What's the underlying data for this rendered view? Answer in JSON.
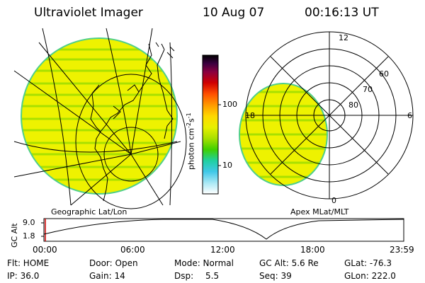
{
  "header": {
    "title": "Ultraviolet Imager",
    "date": "10 Aug 07",
    "time": "00:16:13 UT"
  },
  "colorbar": {
    "ticks": [
      "100",
      "10"
    ],
    "unit_base": "photon cm",
    "unit_exp1": "-2",
    "unit_mid": "s",
    "unit_exp2": "-1"
  },
  "geo_panel": {
    "label": "Geographic Lat/Lon"
  },
  "polar_panel": {
    "label": "Apex MLat/MLT",
    "mlt_labels": {
      "top": "12",
      "left": "18",
      "right": "6",
      "bottom": "0"
    },
    "lat_labels": [
      "60",
      "70",
      "80"
    ]
  },
  "altitude_strip": {
    "axis_label": "GC Alt",
    "ticks": [
      "9.0",
      "1.8"
    ],
    "time_ticks": [
      "00:00",
      "06:00",
      "12:00",
      "18:00",
      "23:59"
    ]
  },
  "status": {
    "flt": "Flt: HOME",
    "ip": "IP: 36.0",
    "door": "Door: Open",
    "gain": "Gain: 14",
    "mode": "Mode: Normal",
    "dsp": "Dsp:",
    "dsp_val": "5.5",
    "gcalt": "GC Alt: 5.6 Re",
    "seq": "Seq: 39",
    "glat": "GLat: -76.3",
    "glon": "GLon: 222.0"
  },
  "colors": {
    "fill": "#eef200",
    "stripe": "#a8e000",
    "edge": "#4fcf8a"
  }
}
